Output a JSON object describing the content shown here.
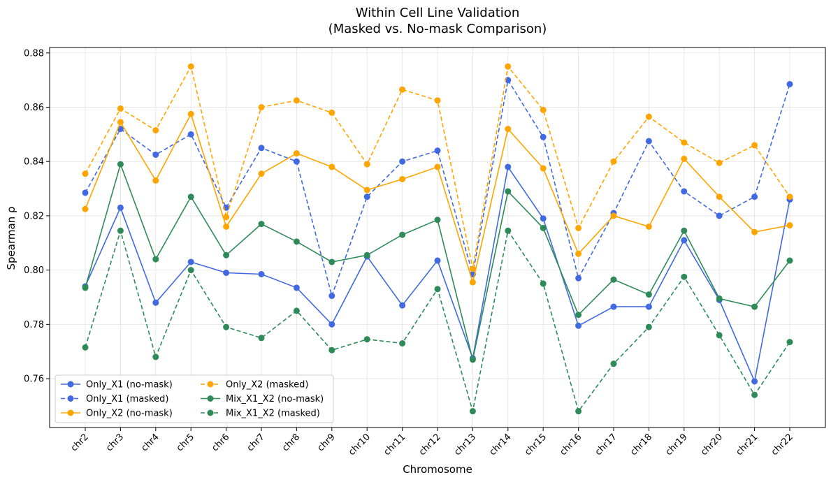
{
  "chart_data": {
    "type": "line",
    "title": "Within Cell Line Validation",
    "subtitle": "(Masked vs. No-mask Comparison)",
    "xlabel": "Chromosome",
    "ylabel": "Spearman ρ",
    "ylim": [
      0.742,
      0.882
    ],
    "yticks": [
      0.76,
      0.78,
      0.8,
      0.82,
      0.84,
      0.86,
      0.88
    ],
    "ytick_labels": [
      "0.76",
      "0.78",
      "0.80",
      "0.82",
      "0.84",
      "0.86",
      "0.88"
    ],
    "grid": true,
    "legend_position": "lower-left",
    "categories": [
      "chr2",
      "chr3",
      "chr4",
      "chr5",
      "chr6",
      "chr7",
      "chr8",
      "chr9",
      "chr10",
      "chr11",
      "chr12",
      "chr13",
      "chr14",
      "chr15",
      "chr16",
      "chr17",
      "chr18",
      "chr19",
      "chr20",
      "chr21",
      "chr22"
    ],
    "series": [
      {
        "name": "Only_X1 (no-mask)",
        "color": "#4169E1",
        "dash": "solid",
        "values": [
          0.794,
          0.823,
          0.788,
          0.803,
          0.799,
          0.7985,
          0.7935,
          0.78,
          0.805,
          0.787,
          0.8035,
          0.7675,
          0.838,
          0.819,
          0.7795,
          0.7865,
          0.7865,
          0.811,
          0.789,
          0.759,
          0.826
        ]
      },
      {
        "name": "Only_X1 (masked)",
        "color": "#4169E1",
        "dash": "dashed",
        "values": [
          0.8285,
          0.852,
          0.8425,
          0.85,
          0.823,
          0.845,
          0.84,
          0.7905,
          0.827,
          0.84,
          0.844,
          0.7985,
          0.87,
          0.849,
          0.797,
          0.821,
          0.8475,
          0.829,
          0.82,
          0.827,
          0.8685
        ]
      },
      {
        "name": "Only_X2 (no-mask)",
        "color": "#FFA500",
        "dash": "solid",
        "values": [
          0.8225,
          0.8545,
          0.833,
          0.8575,
          0.816,
          0.8355,
          0.843,
          0.838,
          0.8295,
          0.8335,
          0.838,
          0.7955,
          0.852,
          0.8375,
          0.806,
          0.82,
          0.816,
          0.841,
          0.827,
          0.814,
          0.8165
        ]
      },
      {
        "name": "Only_X2 (masked)",
        "color": "#FFA500",
        "dash": "dashed",
        "values": [
          0.8355,
          0.8595,
          0.8515,
          0.875,
          0.8195,
          0.86,
          0.8625,
          0.858,
          0.839,
          0.8665,
          0.8625,
          0.8005,
          0.875,
          0.859,
          0.8155,
          0.84,
          0.8565,
          0.847,
          0.8395,
          0.846,
          0.827
        ]
      },
      {
        "name": "Mix_X1_X2 (no-mask)",
        "color": "#2E8B57",
        "dash": "solid",
        "values": [
          0.7935,
          0.839,
          0.804,
          0.827,
          0.8055,
          0.817,
          0.8105,
          0.803,
          0.8055,
          0.813,
          0.8185,
          0.767,
          0.829,
          0.8155,
          0.7835,
          0.7965,
          0.791,
          0.8145,
          0.7895,
          0.7865,
          0.8035
        ]
      },
      {
        "name": "Mix_X1_X2 (masked)",
        "color": "#2E8B57",
        "dash": "dashed",
        "values": [
          0.7715,
          0.8145,
          0.768,
          0.8,
          0.779,
          0.775,
          0.785,
          0.7705,
          0.7745,
          0.773,
          0.793,
          0.748,
          0.8145,
          0.795,
          0.748,
          0.7655,
          0.779,
          0.7975,
          0.776,
          0.754,
          0.7735
        ]
      }
    ],
    "legend": [
      {
        "label": "Only_X1 (no-mask)"
      },
      {
        "label": "Only_X1 (masked)"
      },
      {
        "label": "Only_X2 (no-mask)"
      },
      {
        "label": "Only_X2 (masked)"
      },
      {
        "label": "Mix_X1_X2 (no-mask)"
      },
      {
        "label": "Mix_X1_X2 (masked)"
      }
    ]
  }
}
